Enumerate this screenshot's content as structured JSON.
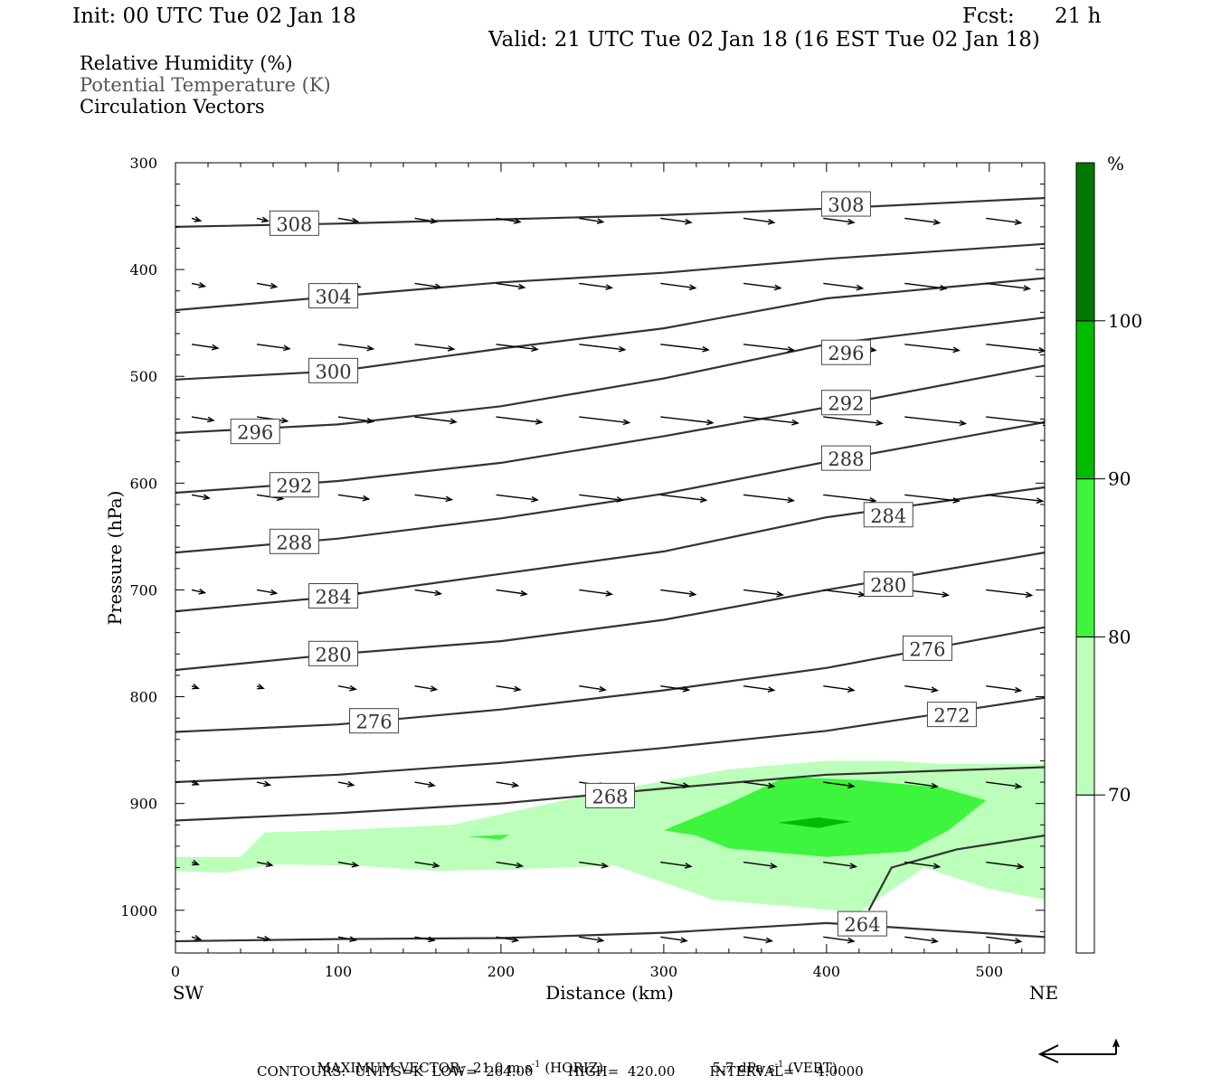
{
  "header": {
    "init": "Init: 00 UTC Tue 02 Jan 18",
    "fcst_label": "Fcst:",
    "fcst_value": "21 h",
    "valid": "Valid: 21 UTC Tue 02 Jan 18 (16 EST Tue 02 Jan 18)"
  },
  "legend": {
    "line1": "Relative Humidity (%)",
    "line2": "Potential Temperature (K)",
    "line3": "Circulation Vectors"
  },
  "footer": {
    "max_vector_label": "MAXIMUM VECTOR:",
    "horiz_value": "21.0 m s",
    "horiz_exp": "-1",
    "horiz_tag": "(HORIZ)",
    "vert_value": "5.7 dPa s",
    "vert_exp": "-1",
    "vert_tag": "(VERT)",
    "contours": "CONTOURS:  UNITS=K  LOW=  264.00        HIGH=  420.00        INTERVAL=     4.0000"
  },
  "colors": {
    "rh70": "#bbffbb",
    "rh80": "#3df53d",
    "rh90": "#00bb00",
    "rh100": "#007700",
    "contour": "#333333"
  },
  "chart_data": {
    "type": "cross-section",
    "xlabel": "Distance (km)",
    "ylabel": "Pressure (hPa)",
    "x_ticks": [
      0,
      100,
      200,
      300,
      400,
      500
    ],
    "y_ticks": [
      300,
      400,
      500,
      600,
      700,
      800,
      900,
      1000
    ],
    "xlim": [
      0,
      534
    ],
    "ylim": [
      300,
      1040
    ],
    "y_axis": "pressure, increasing downward",
    "endpoints": {
      "left": "SW",
      "right": "NE"
    },
    "colorbar": {
      "unit": "%",
      "levels": [
        70,
        80,
        90,
        100
      ],
      "colors": [
        "#bbffbb",
        "#3df53d",
        "#00bb00",
        "#007700"
      ]
    },
    "theta_contours": [
      {
        "value": 308,
        "label_x": 73,
        "label_p": 357,
        "points": [
          [
            0,
            360
          ],
          [
            100,
            357
          ],
          [
            200,
            353
          ],
          [
            300,
            349
          ],
          [
            400,
            343
          ],
          [
            534,
            333
          ]
        ]
      },
      {
        "value": 308,
        "label_x": 412,
        "label_p": 339,
        "points": []
      },
      {
        "value": 304,
        "label_x": 97,
        "label_p": 425,
        "points": [
          [
            0,
            438
          ],
          [
            100,
            425
          ],
          [
            200,
            412
          ],
          [
            300,
            403
          ],
          [
            400,
            390
          ],
          [
            534,
            376
          ]
        ]
      },
      {
        "value": 300,
        "label_x": 97,
        "label_p": 495,
        "points": [
          [
            0,
            503
          ],
          [
            100,
            495
          ],
          [
            200,
            474
          ],
          [
            300,
            455
          ],
          [
            400,
            427
          ],
          [
            534,
            408
          ]
        ]
      },
      {
        "value": 296,
        "label_x": 49,
        "label_p": 552,
        "points": [
          [
            0,
            553
          ],
          [
            100,
            545
          ],
          [
            200,
            528
          ],
          [
            300,
            502
          ],
          [
            400,
            470
          ],
          [
            534,
            445
          ]
        ]
      },
      {
        "value": 296,
        "label_x": 412,
        "label_p": 478,
        "points": []
      },
      {
        "value": 292,
        "label_x": 73,
        "label_p": 602,
        "points": [
          [
            0,
            609
          ],
          [
            100,
            598
          ],
          [
            200,
            581
          ],
          [
            300,
            556
          ],
          [
            400,
            529
          ],
          [
            534,
            490
          ]
        ]
      },
      {
        "value": 292,
        "label_x": 412,
        "label_p": 525,
        "points": []
      },
      {
        "value": 288,
        "label_x": 73,
        "label_p": 655,
        "points": [
          [
            0,
            665
          ],
          [
            100,
            652
          ],
          [
            200,
            633
          ],
          [
            300,
            610
          ],
          [
            400,
            580
          ],
          [
            534,
            543
          ]
        ]
      },
      {
        "value": 288,
        "label_x": 412,
        "label_p": 577,
        "points": []
      },
      {
        "value": 284,
        "label_x": 97,
        "label_p": 706,
        "points": [
          [
            0,
            720
          ],
          [
            100,
            706
          ],
          [
            200,
            685
          ],
          [
            300,
            664
          ],
          [
            400,
            632
          ],
          [
            534,
            604
          ]
        ]
      },
      {
        "value": 284,
        "label_x": 438,
        "label_p": 630,
        "points": []
      },
      {
        "value": 280,
        "label_x": 97,
        "label_p": 760,
        "points": [
          [
            0,
            775
          ],
          [
            100,
            760
          ],
          [
            200,
            748
          ],
          [
            300,
            728
          ],
          [
            400,
            700
          ],
          [
            534,
            665
          ]
        ]
      },
      {
        "value": 280,
        "label_x": 438,
        "label_p": 695,
        "points": []
      },
      {
        "value": 276,
        "label_x": 122,
        "label_p": 823,
        "points": [
          [
            0,
            833
          ],
          [
            100,
            826
          ],
          [
            200,
            812
          ],
          [
            300,
            794
          ],
          [
            400,
            773
          ],
          [
            534,
            735
          ]
        ]
      },
      {
        "value": 276,
        "label_x": 462,
        "label_p": 755,
        "points": []
      },
      {
        "value": 272,
        "label_x": 477,
        "label_p": 817,
        "points": [
          [
            0,
            880
          ],
          [
            100,
            873
          ],
          [
            200,
            862
          ],
          [
            300,
            848
          ],
          [
            400,
            832
          ],
          [
            534,
            801
          ]
        ]
      },
      {
        "value": 268,
        "label_x": 267,
        "label_p": 893,
        "points": [
          [
            0,
            916
          ],
          [
            100,
            909
          ],
          [
            200,
            900
          ],
          [
            300,
            886
          ],
          [
            400,
            873
          ],
          [
            534,
            866
          ]
        ]
      },
      {
        "value": 264,
        "label_x": 422,
        "label_p": 1013,
        "points": [
          [
            0,
            1029
          ],
          [
            100,
            1027
          ],
          [
            200,
            1026
          ],
          [
            300,
            1021
          ],
          [
            400,
            1012
          ],
          [
            534,
            1025
          ]
        ]
      }
    ],
    "theta_264_branch": [
      [
        426,
        1000
      ],
      [
        440,
        960
      ],
      [
        480,
        943
      ],
      [
        534,
        930
      ]
    ],
    "rh_regions": [
      {
        "level": 70,
        "points": [
          [
            0,
            950
          ],
          [
            40,
            950
          ],
          [
            55,
            927
          ],
          [
            100,
            925
          ],
          [
            170,
            920
          ],
          [
            260,
            890
          ],
          [
            340,
            868
          ],
          [
            400,
            860
          ],
          [
            440,
            860
          ],
          [
            470,
            863
          ],
          [
            534,
            863
          ],
          [
            534,
            990
          ],
          [
            500,
            980
          ],
          [
            460,
            960
          ],
          [
            420,
            1002
          ],
          [
            330,
            990
          ],
          [
            270,
            958
          ],
          [
            200,
            962
          ],
          [
            160,
            963
          ],
          [
            110,
            958
          ],
          [
            60,
            957
          ],
          [
            30,
            965
          ],
          [
            0,
            963
          ]
        ]
      },
      {
        "level": 80,
        "points": [
          [
            300,
            925
          ],
          [
            340,
            900
          ],
          [
            375,
            875
          ],
          [
            420,
            878
          ],
          [
            470,
            885
          ],
          [
            498,
            897
          ],
          [
            475,
            925
          ],
          [
            450,
            945
          ],
          [
            400,
            950
          ],
          [
            340,
            942
          ],
          [
            320,
            930
          ]
        ]
      },
      {
        "level": 90,
        "points": [
          [
            370,
            918
          ],
          [
            395,
            913
          ],
          [
            415,
            917
          ],
          [
            395,
            923
          ]
        ]
      },
      {
        "level": 80,
        "points": [
          [
            180,
            931
          ],
          [
            205,
            929
          ],
          [
            200,
            934
          ]
        ]
      }
    ],
    "vectors": {
      "columns_x": [
        10,
        50,
        100,
        147,
        197,
        248,
        298,
        349,
        398,
        448,
        498,
        534
      ],
      "rows": [
        {
          "p": 352,
          "u": [
            0.4,
            0.5,
            0.9,
            1.0,
            1.1,
            1.1,
            1.4,
            1.4,
            1.4,
            1.6,
            1.6,
            0
          ]
        },
        {
          "p": 413,
          "u": [
            0.6,
            0.9,
            1.0,
            1.2,
            1.3,
            1.5,
            1.6,
            1.7,
            1.8,
            1.9,
            2.0,
            0
          ]
        },
        {
          "p": 470,
          "u": [
            1.2,
            1.5,
            1.6,
            1.8,
            1.9,
            2.1,
            2.2,
            2.3,
            2.4,
            2.5,
            2.7,
            0
          ]
        },
        {
          "p": 538,
          "u": [
            1.0,
            1.4,
            1.6,
            1.9,
            2.1,
            2.3,
            2.4,
            2.5,
            2.7,
            2.8,
            2.9,
            0
          ]
        },
        {
          "p": 611,
          "u": [
            0.8,
            1.2,
            1.4,
            1.7,
            1.9,
            2.0,
            2.1,
            2.3,
            2.4,
            2.5,
            2.6,
            0
          ]
        },
        {
          "p": 700,
          "u": [
            0.6,
            0.9,
            1.0,
            1.2,
            1.4,
            1.5,
            1.6,
            1.8,
            1.9,
            2.0,
            2.1,
            0
          ]
        },
        {
          "p": 790,
          "u": [
            0.3,
            0.3,
            0.8,
            1.0,
            1.1,
            1.2,
            1.3,
            1.4,
            1.4,
            1.5,
            1.6,
            0
          ]
        },
        {
          "p": 880,
          "u": [
            0.3,
            0.6,
            0.7,
            0.9,
            1.0,
            1.2,
            1.3,
            1.4,
            1.4,
            1.5,
            1.6,
            0
          ]
        },
        {
          "p": 955,
          "u": [
            0.3,
            0.7,
            0.9,
            1.1,
            1.2,
            1.3,
            1.4,
            1.5,
            1.5,
            1.6,
            1.7,
            0
          ]
        },
        {
          "p": 1025,
          "u": [
            0.4,
            0.6,
            0.8,
            0.9,
            1.0,
            1.1,
            1.2,
            1.3,
            1.4,
            1.5,
            1.6,
            0
          ]
        }
      ]
    }
  }
}
